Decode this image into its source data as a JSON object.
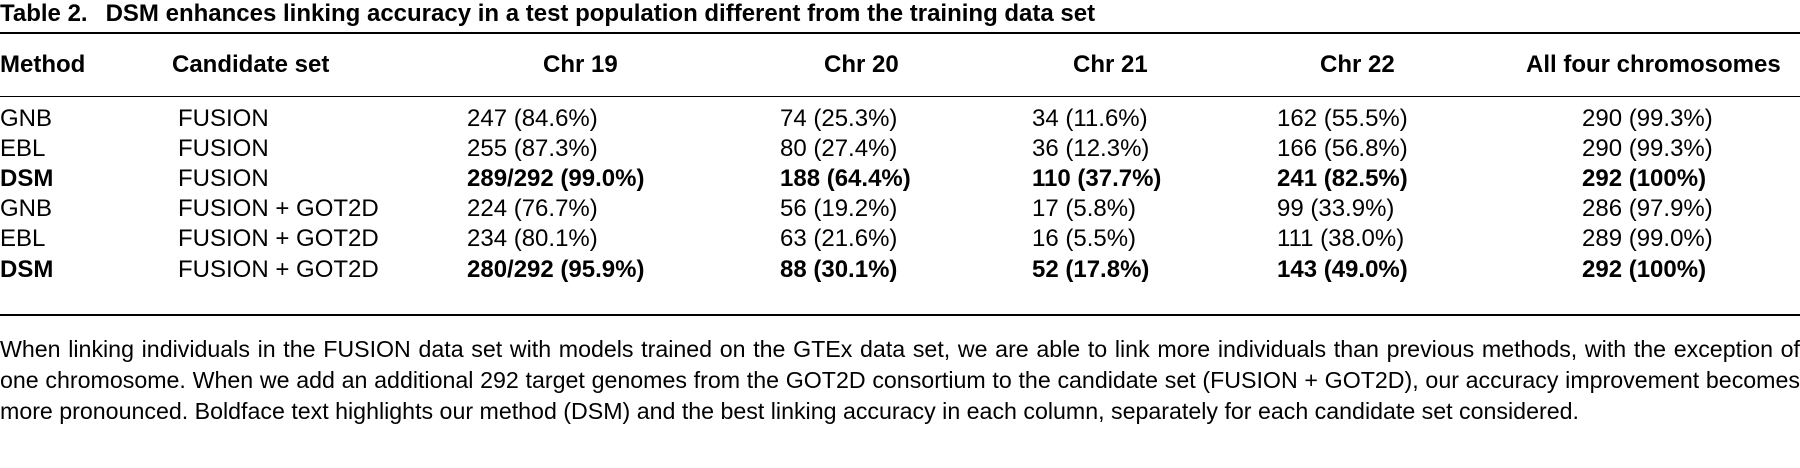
{
  "table": {
    "label": "Table 2.",
    "title": "DSM enhances linking accuracy in a test population different from the training data set",
    "headers": [
      "Method",
      "Candidate set",
      "Chr 19",
      "Chr 20",
      "Chr 21",
      "Chr 22",
      "All four chromosomes"
    ],
    "rows": [
      {
        "bold": false,
        "cells": [
          "GNB",
          "FUSION",
          "247 (84.6%)",
          "74 (25.3%)",
          "34 (11.6%)",
          "162 (55.5%)",
          "290 (99.3%)"
        ]
      },
      {
        "bold": false,
        "cells": [
          "EBL",
          "FUSION",
          "255 (87.3%)",
          "80 (27.4%)",
          "36 (12.3%)",
          "166 (56.8%)",
          "290 (99.3%)"
        ]
      },
      {
        "bold": true,
        "cells": [
          "DSM",
          "FUSION",
          "289/292 (99.0%)",
          "188 (64.4%)",
          "110 (37.7%)",
          "241 (82.5%)",
          "292 (100%)"
        ]
      },
      {
        "bold": false,
        "cells": [
          "GNB",
          "FUSION + GOT2D",
          "224 (76.7%)",
          "56 (19.2%)",
          "17 (5.8%)",
          "99 (33.9%)",
          "286 (97.9%)"
        ]
      },
      {
        "bold": false,
        "cells": [
          "EBL",
          "FUSION + GOT2D",
          "234 (80.1%)",
          "63 (21.6%)",
          "16 (5.5%)",
          "111 (38.0%)",
          "289 (99.0%)"
        ]
      },
      {
        "bold": true,
        "cells": [
          "DSM",
          "FUSION + GOT2D",
          "280/292 (95.9%)",
          "88 (30.1%)",
          "52 (17.8%)",
          "143 (49.0%)",
          "292 (100%)"
        ]
      }
    ],
    "caption": "When linking individuals in the FUSION data set with models trained on the GTEx data set, we are able to link more individuals than previous methods, with the exception of one chromosome. When we add an additional 292 target genomes from the GOT2D consortium to the candidate set (FUSION + GOT2D), our accuracy improvement becomes more pronounced. Boldface text highlights our method (DSM) and the best linking accuracy in each column, separately for each candidate set considered."
  }
}
